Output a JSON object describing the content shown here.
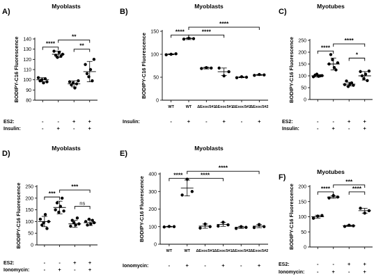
{
  "chart_data": [
    {
      "id": "A",
      "type": "scatter",
      "panel_label": "A)",
      "title": "Myoblasts",
      "ylabel": "BODIPY-C16 Fluorescence",
      "ylim": [
        80,
        140
      ],
      "yticks": [
        80,
        90,
        100,
        110,
        120,
        130,
        140
      ],
      "groups": [
        {
          "values": [
            102,
            99,
            100,
            97,
            101,
            98
          ],
          "mean": 100,
          "sd": 2
        },
        {
          "values": [
            128,
            124,
            122,
            127,
            123,
            125
          ],
          "mean": 125,
          "sd": 3
        },
        {
          "values": [
            98,
            95,
            97,
            92,
            96,
            99
          ],
          "mean": 96,
          "sd": 3
        },
        {
          "values": [
            115,
            106,
            103,
            110,
            99,
            120
          ],
          "mean": 108,
          "sd": 10
        }
      ],
      "conditions": [
        {
          "name": "ES2:",
          "symbols": [
            "-",
            "-",
            "+",
            "+"
          ]
        },
        {
          "name": "Insulin:",
          "symbols": [
            "-",
            "+",
            "-",
            "+"
          ]
        }
      ],
      "brackets": [
        {
          "from": 0,
          "to": 1,
          "y": 132,
          "label": "****"
        },
        {
          "from": 1,
          "to": 3,
          "y": 139,
          "label": "**"
        },
        {
          "from": 2,
          "to": 3,
          "y": 130,
          "label": "**"
        }
      ]
    },
    {
      "id": "B",
      "type": "scatter",
      "panel_label": "B)",
      "title": "Myoblasts",
      "ylabel": "BODIPY-C16 Fluorescence",
      "ylim": [
        0,
        150
      ],
      "yticks": [
        0,
        50,
        100,
        150
      ],
      "categories": [
        "WT",
        "WT",
        "ΔExoc5#1",
        "ΔExoc5#1",
        "ΔExoc5#2",
        "ΔExoc5#2"
      ],
      "groups": [
        {
          "values": [
            99,
            100,
            101
          ],
          "mean": 100,
          "sd": 1
        },
        {
          "values": [
            133,
            135,
            134
          ],
          "mean": 134,
          "sd": 2
        },
        {
          "values": [
            69,
            71,
            70
          ],
          "mean": 70,
          "sd": 2
        },
        {
          "values": [
            70,
            53,
            62
          ],
          "mean": 62,
          "sd": 8
        },
        {
          "values": [
            49,
            51,
            50
          ],
          "mean": 50,
          "sd": 1
        },
        {
          "values": [
            54,
            56,
            55
          ],
          "mean": 55,
          "sd": 1
        }
      ],
      "conditions": [
        {
          "name": "Insulin:",
          "symbols": [
            "-",
            "+",
            "-",
            "+",
            "-",
            "+"
          ]
        }
      ],
      "brackets": [
        {
          "from": 0,
          "to": 1,
          "y": 142,
          "label": "****"
        },
        {
          "from": 1,
          "to": 3,
          "y": 142,
          "label": "****"
        },
        {
          "from": 1,
          "to": 5,
          "y": 159,
          "label": "****"
        }
      ]
    },
    {
      "id": "C",
      "type": "scatter",
      "panel_label": "C)",
      "title": "Myotubes",
      "ylabel": "BODIPY-C16 Fluorescence",
      "ylim": [
        0,
        250
      ],
      "yticks": [
        0,
        50,
        100,
        150,
        200,
        250
      ],
      "groups": [
        {
          "values": [
            96,
            103,
            107,
            98,
            100,
            101
          ],
          "mean": 100,
          "sd": 5
        },
        {
          "values": [
            150,
            190,
            168,
            135,
            125,
            155
          ],
          "mean": 150,
          "sd": 25
        },
        {
          "values": [
            63,
            78,
            55,
            65,
            70,
            60
          ],
          "mean": 65,
          "sd": 8
        },
        {
          "values": [
            118,
            100,
            88,
            107,
            80,
            120
          ],
          "mean": 100,
          "sd": 18
        }
      ],
      "conditions": [
        {
          "name": "ES2:",
          "symbols": [
            "-",
            "-",
            "+",
            "+"
          ]
        },
        {
          "name": "Insulin:",
          "symbols": [
            "-",
            "+",
            "-",
            "+"
          ]
        }
      ],
      "brackets": [
        {
          "from": 0,
          "to": 1,
          "y": 205,
          "label": "****"
        },
        {
          "from": 1,
          "to": 3,
          "y": 235,
          "label": "****"
        },
        {
          "from": 2,
          "to": 3,
          "y": 175,
          "label": "*"
        }
      ]
    },
    {
      "id": "D",
      "type": "scatter",
      "panel_label": "D)",
      "title": "Myoblasts",
      "ylabel": "BODIPY-C16 Fluorescence",
      "ylim": [
        0,
        250
      ],
      "yticks": [
        0,
        50,
        100,
        150,
        200,
        250
      ],
      "groups": [
        {
          "values": [
            110,
            85,
            95,
            130,
            70,
            100
          ],
          "mean": 100,
          "sd": 22
        },
        {
          "values": [
            150,
            180,
            140,
            165,
            200,
            145
          ],
          "mean": 160,
          "sd": 27
        },
        {
          "values": [
            80,
            105,
            95,
            85,
            115,
            90
          ],
          "mean": 90,
          "sd": 15
        },
        {
          "values": [
            100,
            85,
            110,
            90,
            105,
            95
          ],
          "mean": 95,
          "sd": 12
        }
      ],
      "conditions": [
        {
          "name": "ES2:",
          "symbols": [
            "-",
            "-",
            "+",
            "+"
          ]
        },
        {
          "name": "Ionomycin:",
          "symbols": [
            "-",
            "+",
            "-",
            "+"
          ]
        }
      ],
      "brackets": [
        {
          "from": 0,
          "to": 1,
          "y": 205,
          "label": "***"
        },
        {
          "from": 1,
          "to": 3,
          "y": 235,
          "label": "***"
        },
        {
          "from": 2,
          "to": 3,
          "y": 165,
          "label": "ns"
        }
      ]
    },
    {
      "id": "E",
      "type": "scatter",
      "panel_label": "E)",
      "title": "Myoblasts",
      "ylabel": "BODIPY-C16 Fluorescence",
      "ylim": [
        0,
        400
      ],
      "yticks": [
        0,
        100,
        200,
        300,
        400
      ],
      "categories": [
        "WT",
        "WT",
        "ΔExoc5#1",
        "ΔExoc5#1",
        "ΔExoc5#2",
        "ΔExoc5#2"
      ],
      "groups": [
        {
          "values": [
            98,
            101,
            100
          ],
          "mean": 100,
          "sd": 2
        },
        {
          "values": [
            280,
            370,
            300
          ],
          "mean": 320,
          "sd": 45
        },
        {
          "values": [
            92,
            115,
            100
          ],
          "mean": 103,
          "sd": 12
        },
        {
          "values": [
            103,
            125,
            110
          ],
          "mean": 113,
          "sd": 11
        },
        {
          "values": [
            90,
            100,
            96
          ],
          "mean": 96,
          "sd": 6
        },
        {
          "values": [
            95,
            112,
            100
          ],
          "mean": 103,
          "sd": 9
        }
      ],
      "conditions": [
        {
          "name": "Ionomycin:",
          "symbols": [
            "-",
            "+",
            "-",
            "+",
            "-",
            "+"
          ]
        }
      ],
      "brackets": [
        {
          "from": 0,
          "to": 1,
          "y": 375,
          "label": "****"
        },
        {
          "from": 1,
          "to": 3,
          "y": 375,
          "label": "****"
        },
        {
          "from": 1,
          "to": 5,
          "y": 415,
          "label": "****"
        }
      ]
    },
    {
      "id": "F",
      "type": "scatter",
      "panel_label": "F)",
      "title": "Myotubes",
      "ylabel": "BODIPY-C16 Fluorescence",
      "ylim": [
        0,
        200
      ],
      "yticks": [
        0,
        50,
        100,
        150,
        200
      ],
      "groups": [
        {
          "values": [
            95,
            102,
            104
          ],
          "mean": 100,
          "sd": 5
        },
        {
          "values": [
            162,
            170,
            165
          ],
          "mean": 165,
          "sd": 4
        },
        {
          "values": [
            68,
            72,
            70
          ],
          "mean": 70,
          "sd": 2
        },
        {
          "values": [
            128,
            112,
            120
          ],
          "mean": 120,
          "sd": 8
        }
      ],
      "conditions": [
        {
          "name": "ES2:",
          "symbols": [
            "-",
            "-",
            "+",
            "+"
          ]
        },
        {
          "name": "Ionomycin:",
          "symbols": [
            "-",
            "+",
            "-",
            "+"
          ]
        }
      ],
      "brackets": [
        {
          "from": 0,
          "to": 1,
          "y": 182,
          "label": "****"
        },
        {
          "from": 1,
          "to": 3,
          "y": 205,
          "label": "***"
        },
        {
          "from": 2,
          "to": 3,
          "y": 182,
          "label": "****"
        }
      ]
    }
  ]
}
